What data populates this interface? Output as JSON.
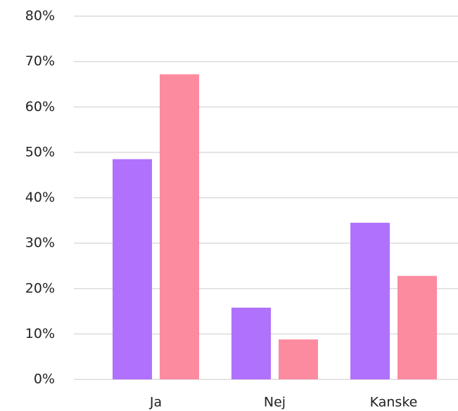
{
  "chart_data": {
    "type": "bar",
    "categories": [
      "Ja",
      "Nej",
      "Kanske"
    ],
    "series": [
      {
        "color": "#b072fc",
        "values": [
          48.5,
          15.8,
          34.5
        ]
      },
      {
        "color": "#fd8ba0",
        "values": [
          67.2,
          8.8,
          22.8
        ]
      }
    ],
    "ylim": [
      0,
      80
    ],
    "yticks": [
      {
        "value": 0,
        "label": "0%"
      },
      {
        "value": 10,
        "label": "10%"
      },
      {
        "value": 20,
        "label": "20%"
      },
      {
        "value": 30,
        "label": "30%"
      },
      {
        "value": 40,
        "label": "40%"
      },
      {
        "value": 50,
        "label": "50%"
      },
      {
        "value": 60,
        "label": "60%"
      },
      {
        "value": 70,
        "label": "70%"
      },
      {
        "value": 80,
        "label": "80%"
      }
    ],
    "grid": true
  }
}
